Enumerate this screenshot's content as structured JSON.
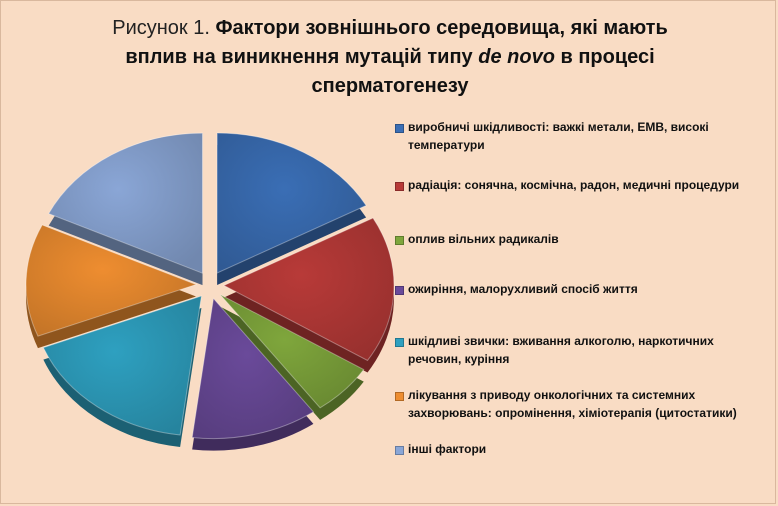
{
  "chart_data": {
    "type": "pie",
    "title_prefix": "Рисунок 1.",
    "title_line1": "Фактори зовнішнього середовища, які мають",
    "title_line2_a": "вплив на виникнення мутацій типу",
    "title_line2_em": "de novo",
    "title_line2_b": "в процесі",
    "title_line3": "сперматогенезу",
    "labels": [
      "виробничі шкідливості: важкі метали, ЕМВ, високі температури",
      "радіація: сонячна, космічна, радон, медичні процедури",
      "оплив вільних радикалів",
      "ожиріння, малорухливий спосіб життя",
      "шкідливі звички: вживання алкоголю, наркотичних речовин, куріння",
      "лікування з приводу онкологічних та системних захворювань: опромінення, хіміотерапія (цитостатики)",
      "інші фактори"
    ],
    "values": [
      17,
      17,
      6,
      12,
      17,
      13,
      18
    ],
    "colors": [
      "#3a6eb5",
      "#b83a38",
      "#7fa63c",
      "#6a4a9a",
      "#2ea0c0",
      "#ee8d30",
      "#8aa6d6"
    ],
    "legend_position": "right"
  }
}
